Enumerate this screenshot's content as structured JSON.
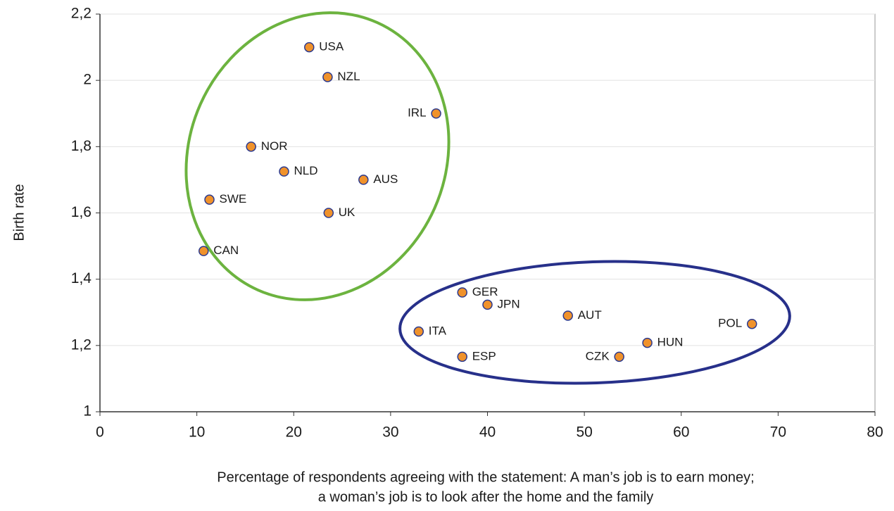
{
  "chart_data": {
    "type": "scatter",
    "x_label": [
      "Percentage of respondents agreeing with the statement: A man’s job is to earn money;",
      "a woman’s job is to look after the home and the family"
    ],
    "y_label": "Birth rate",
    "series": [
      {
        "color": "#f0922b",
        "edge_color": "#2b3a8f",
        "labels": [
          "USA",
          "NZL",
          "IRL",
          "NOR",
          "NLD",
          "AUS",
          "SWE",
          "UK",
          "CAN",
          "GER",
          "JPN",
          "AUT",
          "ITA",
          "POL",
          "HUN",
          "ESP",
          "CZK"
        ],
        "x": [
          21.6,
          23.5,
          34.7,
          15.6,
          19.0,
          27.2,
          11.3,
          23.6,
          10.7,
          37.4,
          40.0,
          48.3,
          32.9,
          67.3,
          56.5,
          37.4,
          53.6
        ],
        "values": [
          2.1,
          2.01,
          1.9,
          1.8,
          1.725,
          1.7,
          1.64,
          1.6,
          1.485,
          1.36,
          1.323,
          1.29,
          1.242,
          1.265,
          1.208,
          1.166,
          1.166
        ]
      }
    ],
    "xlim": [
      0,
      80
    ],
    "xticks": [
      0,
      10,
      20,
      30,
      40,
      50,
      60,
      70,
      80
    ],
    "ylim": [
      1,
      2.2
    ],
    "yticks": [
      1,
      {
        "value": 1.2,
        "label": "1,2"
      },
      {
        "value": 1.4,
        "label": "1,4"
      },
      {
        "value": 1.6,
        "label": "1,6"
      },
      {
        "value": 1.8,
        "label": "1,8"
      },
      2,
      {
        "value": 2.2,
        "label": "2,2"
      }
    ],
    "grid": true
  }
}
